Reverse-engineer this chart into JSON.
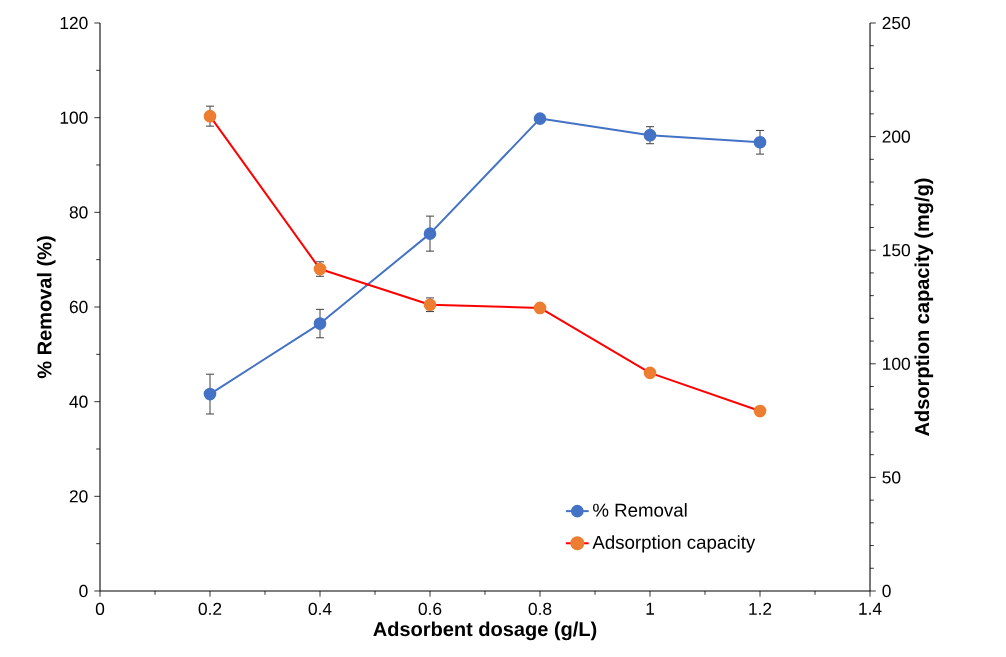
{
  "chart_data": {
    "type": "line",
    "xlabel": "Adsorbent dosage (g/L)",
    "ylabel": "% Removal (%)",
    "y2label": "Adsorption capacity (mg/g)",
    "x": [
      0.2,
      0.4,
      0.6,
      0.8,
      1.0,
      1.2
    ],
    "xlim": [
      0,
      1.4
    ],
    "xticks": [
      0,
      0.2,
      0.4,
      0.6,
      0.8,
      1,
      1.2,
      1.4
    ],
    "ylim": [
      0,
      120
    ],
    "yticks": [
      0,
      20,
      40,
      60,
      80,
      100,
      120
    ],
    "y2lim": [
      0,
      250
    ],
    "y2ticks": [
      0,
      50,
      100,
      150,
      200,
      250
    ],
    "legend": "bottom right",
    "marker": "circle",
    "line_style": "solid",
    "series": [
      {
        "name": "% Removal",
        "color": "#4472c4",
        "values": [
          41.6,
          56.5,
          75.5,
          99.8,
          96.3,
          94.8
        ],
        "errors": [
          4.2,
          3,
          3.7,
          null,
          1.8,
          2.5
        ]
      },
      {
        "name": "Adsorption capacity",
        "color": "#ed7d31",
        "axis": "y2",
        "values": [
          209,
          141.7,
          126,
          124.6,
          96,
          79.2
        ],
        "errors": [
          4.4,
          3.2,
          3,
          null,
          null,
          null
        ]
      }
    ]
  }
}
